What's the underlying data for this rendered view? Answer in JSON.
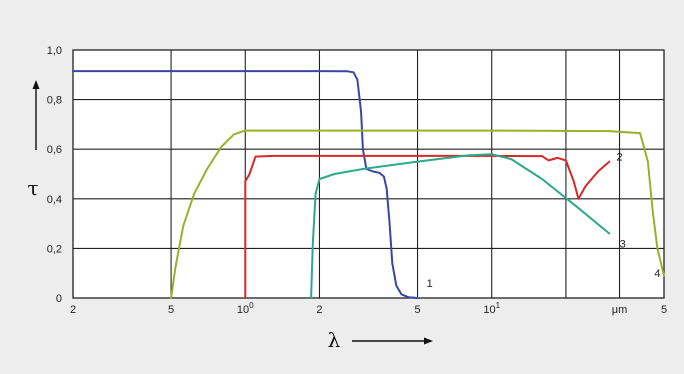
{
  "chart_data": {
    "type": "line",
    "title": "",
    "xlabel": "λ",
    "ylabel": "τ",
    "x_scale": "log",
    "xlim": [
      0.2,
      50
    ],
    "ylim": [
      0,
      1.0
    ],
    "grid": true,
    "x_ticks": [
      {
        "value": 0.2,
        "label": "2"
      },
      {
        "value": 0.5,
        "label": "5"
      },
      {
        "value": 1,
        "label": "10",
        "exp": "0"
      },
      {
        "value": 2,
        "label": "2"
      },
      {
        "value": 5,
        "label": "5"
      },
      {
        "value": 10,
        "label": "10",
        "exp": "1"
      },
      {
        "value": 20,
        "label": "",
        "grid_only": true
      },
      {
        "value": 33,
        "label": "μm"
      },
      {
        "value": 50,
        "label": "5"
      }
    ],
    "y_ticks": [
      {
        "value": 0,
        "label": "0"
      },
      {
        "value": 0.2,
        "label": "0,2"
      },
      {
        "value": 0.4,
        "label": "0,4"
      },
      {
        "value": 0.6,
        "label": "0,6"
      },
      {
        "value": 0.8,
        "label": "0,8"
      },
      {
        "value": 1.0,
        "label": "1,0"
      }
    ],
    "series": [
      {
        "name": "1",
        "color": "#3a45a8",
        "label_at": [
          5.6,
          0.06
        ],
        "x": [
          0.2,
          1.0,
          2.0,
          2.6,
          2.75,
          2.85,
          2.95,
          3.0,
          3.1,
          3.3,
          3.5,
          3.65,
          3.75,
          3.85,
          3.95,
          4.1,
          4.3,
          4.6,
          5.0
        ],
        "y": [
          0.915,
          0.915,
          0.915,
          0.914,
          0.91,
          0.88,
          0.75,
          0.6,
          0.52,
          0.51,
          0.505,
          0.49,
          0.44,
          0.3,
          0.14,
          0.05,
          0.015,
          0.003,
          0.0
        ]
      },
      {
        "name": "2",
        "color": "#d62a2a",
        "label_at": [
          33,
          0.57
        ],
        "x": [
          1.0,
          1.0,
          1.04,
          1.1,
          1.3,
          2.0,
          5.0,
          10.0,
          16.0,
          17.0,
          18.5,
          20.0,
          21.5,
          22.5,
          24.0,
          27.0,
          30.0
        ],
        "y": [
          0.0,
          0.47,
          0.5,
          0.57,
          0.573,
          0.573,
          0.573,
          0.573,
          0.572,
          0.555,
          0.565,
          0.555,
          0.47,
          0.4,
          0.45,
          0.51,
          0.55
        ]
      },
      {
        "name": "3",
        "color": "#2da88a",
        "label_at": [
          34,
          0.22
        ],
        "x": [
          1.85,
          1.88,
          1.93,
          2.0,
          2.3,
          3.0,
          5.0,
          8.0,
          10.0,
          12.0,
          16.0,
          22.0,
          30.0
        ],
        "y": [
          0.0,
          0.22,
          0.42,
          0.48,
          0.5,
          0.52,
          0.55,
          0.575,
          0.58,
          0.56,
          0.48,
          0.37,
          0.26
        ]
      },
      {
        "name": "4",
        "color": "#9ab02a",
        "label_at": [
          47,
          0.1
        ],
        "x": [
          0.5,
          0.52,
          0.56,
          0.62,
          0.7,
          0.8,
          0.9,
          1.0,
          2.0,
          10.0,
          30.0,
          40.0,
          43.0,
          45.0,
          47.0,
          50.0
        ],
        "y": [
          0.0,
          0.12,
          0.29,
          0.42,
          0.52,
          0.61,
          0.66,
          0.675,
          0.675,
          0.675,
          0.673,
          0.665,
          0.55,
          0.35,
          0.2,
          0.09
        ]
      }
    ]
  }
}
